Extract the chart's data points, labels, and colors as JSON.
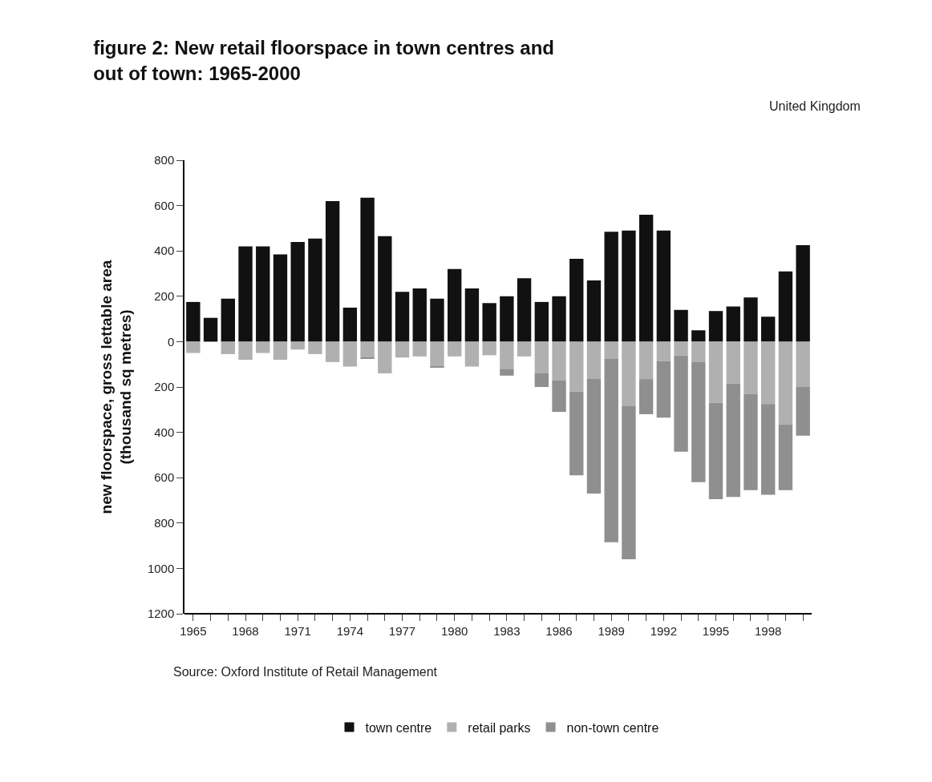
{
  "chart_data": {
    "type": "bar",
    "stacked": true,
    "title": "figure 2: New retail floorspace in town centres and\nout of town: 1965-2000",
    "subtitle": "United Kingdom",
    "ylabel": "new floorspace, gross lettable area\n(thousand sq metres)",
    "annotations": [
      "Source: Oxford Institute of Retail Management"
    ],
    "x": [
      1965,
      1966,
      1967,
      1968,
      1969,
      1970,
      1971,
      1972,
      1973,
      1974,
      1975,
      1976,
      1977,
      1978,
      1979,
      1980,
      1981,
      1982,
      1983,
      1984,
      1985,
      1986,
      1987,
      1988,
      1989,
      1990,
      1991,
      1992,
      1993,
      1994,
      1995,
      1996,
      1997,
      1998,
      1999,
      2000
    ],
    "series": [
      {
        "name": "town centre",
        "color": "#111111",
        "values": [
          175,
          105,
          190,
          420,
          420,
          385,
          440,
          455,
          620,
          150,
          635,
          465,
          220,
          235,
          190,
          320,
          235,
          170,
          200,
          280,
          175,
          200,
          365,
          270,
          485,
          490,
          560,
          490,
          140,
          50,
          135,
          155,
          195,
          110,
          310,
          425
        ]
      },
      {
        "name": "retail parks",
        "color": "#b0b0b0",
        "values": [
          -50,
          0,
          -55,
          -80,
          -50,
          -80,
          -35,
          -55,
          -90,
          -110,
          -70,
          -140,
          -70,
          -65,
          -110,
          -65,
          -110,
          -60,
          -120,
          -65,
          -140,
          -170,
          -220,
          -165,
          -75,
          -285,
          -165,
          -85,
          -60,
          -90,
          -270,
          -185,
          -230,
          -275,
          -365,
          -200
        ]
      },
      {
        "name": "non-town centre",
        "color": "#8f8f8f",
        "values": [
          0,
          0,
          0,
          0,
          0,
          0,
          0,
          0,
          0,
          0,
          -5,
          0,
          0,
          0,
          -5,
          0,
          0,
          0,
          -30,
          0,
          -60,
          -140,
          -370,
          -505,
          -810,
          -675,
          -155,
          -250,
          -425,
          -530,
          -425,
          -500,
          -425,
          -400,
          -290,
          -215
        ]
      }
    ],
    "xlim": [
      1964.5,
      2000.5
    ],
    "xticks": [
      1965,
      {
        "value": 1966,
        "label": null
      },
      {
        "value": 1967,
        "label": null
      },
      1968,
      {
        "value": 1969,
        "label": null
      },
      {
        "value": 1970,
        "label": null
      },
      1971,
      {
        "value": 1972,
        "label": null
      },
      {
        "value": 1973,
        "label": null
      },
      1974,
      {
        "value": 1975,
        "label": null
      },
      {
        "value": 1976,
        "label": null
      },
      1977,
      {
        "value": 1978,
        "label": null
      },
      {
        "value": 1979,
        "label": null
      },
      1980,
      {
        "value": 1981,
        "label": null
      },
      {
        "value": 1982,
        "label": null
      },
      1983,
      {
        "value": 1984,
        "label": null
      },
      {
        "value": 1985,
        "label": null
      },
      1986,
      {
        "value": 1987,
        "label": null
      },
      {
        "value": 1988,
        "label": null
      },
      1989,
      {
        "value": 1990,
        "label": null
      },
      {
        "value": 1991,
        "label": null
      },
      1992,
      {
        "value": 1993,
        "label": null
      },
      {
        "value": 1994,
        "label": null
      },
      1995,
      {
        "value": 1996,
        "label": null
      },
      {
        "value": 1997,
        "label": null
      },
      1998,
      {
        "value": 1999,
        "label": null
      },
      {
        "value": 2000,
        "label": null
      }
    ],
    "ylim": [
      -1200,
      800
    ],
    "yticks": [
      800,
      600,
      400,
      200,
      0,
      {
        "value": -200,
        "label": "200"
      },
      {
        "value": -400,
        "label": "400"
      },
      {
        "value": -600,
        "label": "600"
      },
      {
        "value": -800,
        "label": "800"
      },
      {
        "value": -1000,
        "label": "1000"
      },
      {
        "value": -1200,
        "label": "1200"
      }
    ],
    "legend": "bottom"
  }
}
